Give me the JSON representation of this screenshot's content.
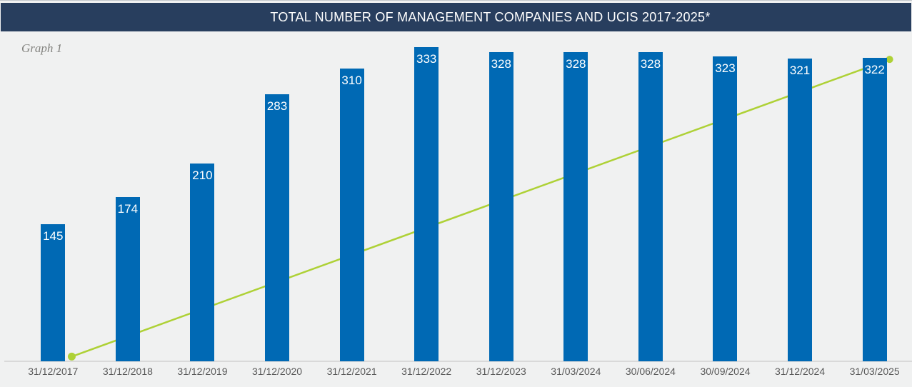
{
  "header": {
    "title": "TOTAL NUMBER OF MANAGEMENT COMPANIES AND UCIS 2017-2025*",
    "bg_color": "#283E5E",
    "text_color": "#FFFFFF"
  },
  "graph_label": "Graph 1",
  "chart_data": {
    "type": "bar",
    "title": "TOTAL NUMBER OF MANAGEMENT COMPANIES AND UCIS 2017-2025*",
    "categories": [
      "31/12/2017",
      "31/12/2018",
      "31/12/2019",
      "31/12/2020",
      "31/12/2021",
      "31/12/2022",
      "31/12/2023",
      "31/03/2024",
      "30/06/2024",
      "30/09/2024",
      "31/12/2024",
      "31/03/2025"
    ],
    "values": [
      145,
      174,
      210,
      283,
      310,
      333,
      328,
      328,
      328,
      323,
      321,
      322
    ],
    "bar_color": "#0069B4",
    "value_label_color": "#FFFFFF",
    "tick_label_color": "#595959",
    "background_color": "#F0F1F1",
    "ylim": [
      0,
      350
    ],
    "grid": false,
    "y_axis_visible": false,
    "legend": "none",
    "trend_line": {
      "type": "line",
      "color": "#AED136",
      "description": "straight rising line with round markers at both ends, drawn behind the bars",
      "start": {
        "x_index": 0.25,
        "value": 5
      },
      "end": {
        "x_index": 11.2,
        "value": 320
      }
    }
  }
}
